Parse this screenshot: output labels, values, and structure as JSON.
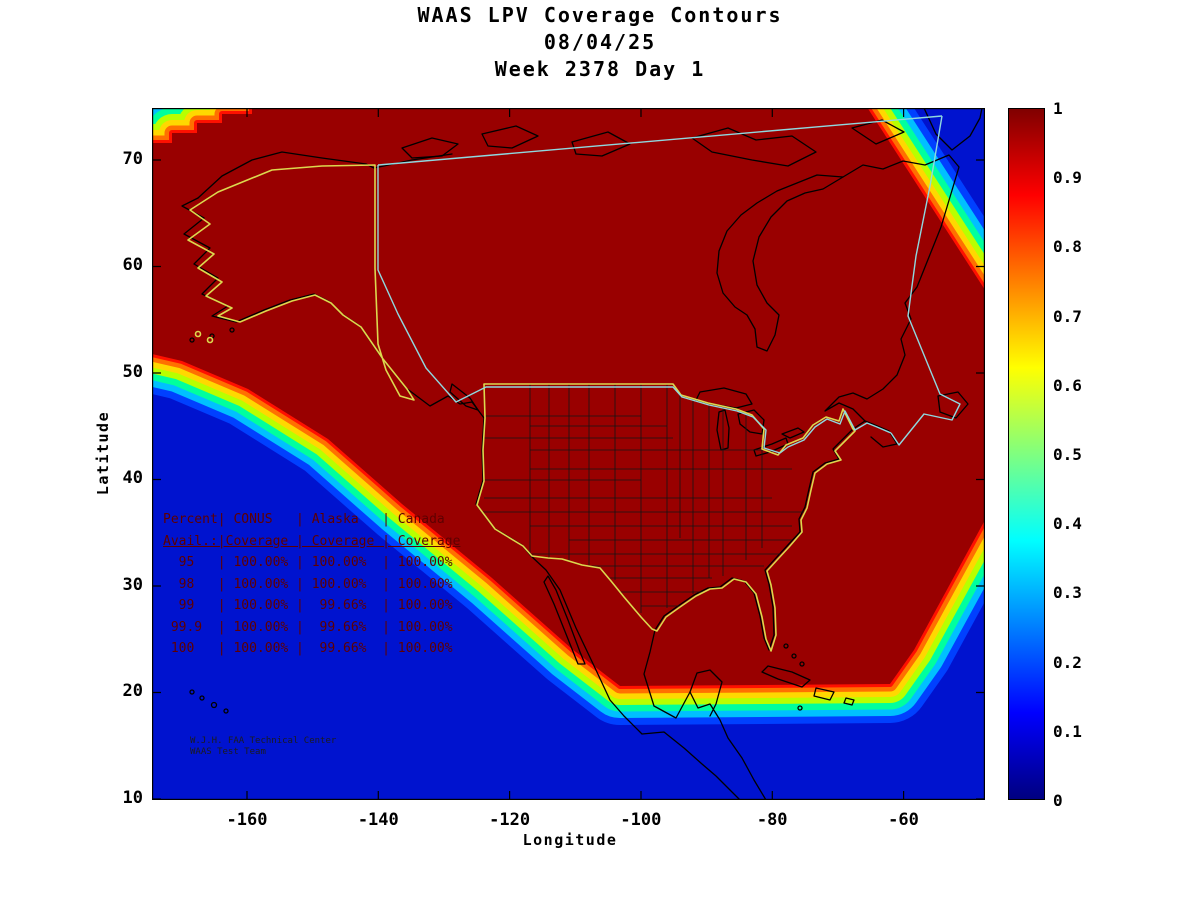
{
  "title": {
    "line1": "WAAS LPV Coverage Contours",
    "line2": "08/04/25",
    "line3": "Week 2378 Day 1"
  },
  "axes": {
    "xlabel": "Longitude",
    "ylabel": "Latitude",
    "xticks": [
      "-160",
      "-140",
      "-120",
      "-100",
      "-80",
      "-60"
    ],
    "yticks": [
      "70",
      "60",
      "50",
      "40",
      "30",
      "20",
      "10"
    ]
  },
  "colorbar": {
    "min": 0,
    "max": 1,
    "ticks": [
      "1",
      "0.9",
      "0.8",
      "0.7",
      "0.6",
      "0.5",
      "0.4",
      "0.3",
      "0.2",
      "0.1",
      "0"
    ]
  },
  "overlay_table": {
    "lines": [
      "Percent| CONUS   | Alaska   | Canada",
      "Avail.:|Coverage | Coverage | Coverage",
      "  95   | 100.00% | 100.00%  | 100.00%",
      "  98   | 100.00% | 100.00%  | 100.00%",
      "  99   | 100.00% |  99.66%  | 100.00%",
      " 99.9  | 100.00% |  99.66%  | 100.00%",
      " 100   | 100.00% |  99.66%  | 100.00%"
    ]
  },
  "credit": {
    "line1": "W.J.H. FAA Technical Center",
    "line2": "WAAS Test Team"
  },
  "colors": {
    "coverage_full": "#990000",
    "ocean": "#0013cf",
    "conus_alaska_border": "#dcd84e",
    "canada_region_border": "#8fd8df",
    "contour_bands": [
      "#0040ff",
      "#00c0ff",
      "#00ff9e",
      "#b8ff00",
      "#ffd800",
      "#ff7000",
      "#ff1000"
    ]
  },
  "chart_data": {
    "type": "heatmap",
    "title": "WAAS LPV Coverage Contours",
    "date": "08/04/25",
    "week_day": "Week 2378 Day 1",
    "xlabel": "Longitude",
    "ylabel": "Latitude",
    "xlim": [
      -175,
      -48
    ],
    "ylim": [
      10,
      75
    ],
    "xticks": [
      -160,
      -140,
      -120,
      -100,
      -80,
      -60
    ],
    "yticks": [
      10,
      20,
      30,
      40,
      50,
      60,
      70
    ],
    "grid": false,
    "colorbar": {
      "min": 0,
      "max": 1,
      "ticks": [
        0,
        0.1,
        0.2,
        0.3,
        0.4,
        0.5,
        0.6,
        0.7,
        0.8,
        0.9,
        1
      ],
      "colormap": "jet",
      "position": "right"
    },
    "description": "Contour map of WAAS LPV coverage fraction over North America. A large dark-red region (coverage ~1.0) spans CONUS, Alaska, Canada and Mexico, falling off through rainbow contour bands to blue (0) over the surrounding oceans: a wide diagonal falloff band southwest of the coast, a horizontal falloff near latitude 17-20 at the bottom, and diagonal falloff bands at the top-left staircase, top-right and bottom-right corners.",
    "coverage_table": {
      "columns": [
        "Percent Avail.",
        "CONUS Coverage",
        "Alaska Coverage",
        "Canada Coverage"
      ],
      "rows": [
        [
          "95",
          "100.00%",
          "100.00%",
          "100.00%"
        ],
        [
          "98",
          "100.00%",
          "100.00%",
          "100.00%"
        ],
        [
          "99",
          "100.00%",
          "99.66%",
          "100.00%"
        ],
        [
          "99.9",
          "100.00%",
          "99.66%",
          "100.00%"
        ],
        [
          "100",
          "100.00%",
          "99.66%",
          "100.00%"
        ]
      ]
    }
  }
}
